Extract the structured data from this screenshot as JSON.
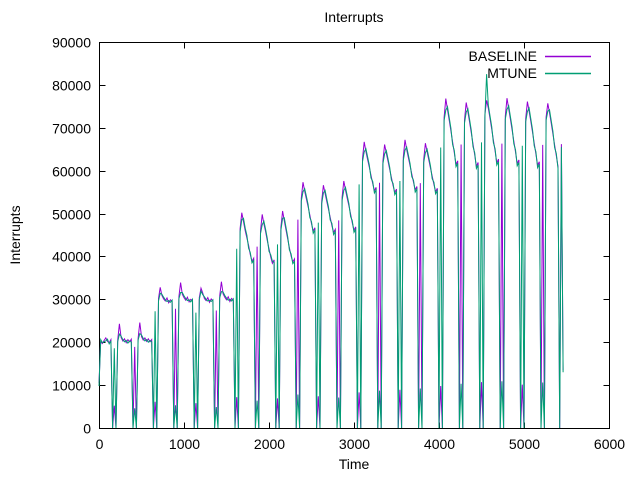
{
  "title": "Interrupts",
  "chart_data": {
    "type": "line",
    "title": "Interrupts",
    "xlabel": "Time",
    "ylabel": "Interrupts",
    "xlim": [
      0,
      6000
    ],
    "ylim": [
      0,
      90000
    ],
    "x_ticks": [
      0,
      1000,
      2000,
      3000,
      4000,
      5000,
      6000
    ],
    "y_ticks": [
      0,
      10000,
      20000,
      30000,
      40000,
      50000,
      60000,
      70000,
      80000,
      90000
    ],
    "grid": "off",
    "legend_position": "top-right-inside",
    "background": "#ffffff",
    "border_color": "#000000",
    "series": [
      {
        "name": "BASELINE",
        "color": "#9400d3"
      },
      {
        "name": "MTUNE",
        "color": "#009e73"
      }
    ],
    "columns": [
      "time",
      "BASELINE",
      "MTUNE"
    ],
    "points": [
      [
        0,
        10500,
        9800
      ],
      [
        20,
        20100,
        20600
      ],
      [
        40,
        19700,
        19900
      ],
      [
        60,
        20400,
        20100
      ],
      [
        80,
        21000,
        20300
      ],
      [
        100,
        20200,
        20700
      ],
      [
        120,
        19900,
        19600
      ],
      [
        140,
        20600,
        20200
      ],
      [
        160,
        0,
        0
      ],
      [
        180,
        5200,
        18600
      ],
      [
        200,
        0,
        0
      ],
      [
        220,
        20500,
        20100
      ],
      [
        240,
        24300,
        21900
      ],
      [
        260,
        21100,
        21400
      ],
      [
        280,
        20300,
        20600
      ],
      [
        300,
        20800,
        20100
      ],
      [
        320,
        19900,
        20400
      ],
      [
        340,
        20600,
        19800
      ],
      [
        360,
        20100,
        20300
      ],
      [
        380,
        20700,
        20000
      ],
      [
        400,
        0,
        0
      ],
      [
        420,
        18900,
        4600
      ],
      [
        440,
        0,
        0
      ],
      [
        460,
        20900,
        20500
      ],
      [
        480,
        24600,
        22000
      ],
      [
        500,
        21300,
        21700
      ],
      [
        520,
        20500,
        20900
      ],
      [
        540,
        21000,
        20300
      ],
      [
        560,
        20200,
        20600
      ],
      [
        580,
        20800,
        20000
      ],
      [
        600,
        20100,
        20400
      ],
      [
        620,
        20600,
        20100
      ],
      [
        640,
        0,
        0
      ],
      [
        660,
        6100,
        27200
      ],
      [
        680,
        0,
        0
      ],
      [
        700,
        30200,
        29600
      ],
      [
        720,
        32800,
        31400
      ],
      [
        740,
        30900,
        31200
      ],
      [
        760,
        30100,
        30500
      ],
      [
        780,
        29600,
        29900
      ],
      [
        800,
        30300,
        29500
      ],
      [
        820,
        29200,
        29700
      ],
      [
        840,
        29900,
        29300
      ],
      [
        860,
        29500,
        29800
      ],
      [
        880,
        0,
        0
      ],
      [
        900,
        27800,
        5300
      ],
      [
        920,
        0,
        0
      ],
      [
        940,
        30600,
        30100
      ],
      [
        960,
        33900,
        31600
      ],
      [
        980,
        31200,
        31600
      ],
      [
        1000,
        30400,
        30800
      ],
      [
        1020,
        29800,
        30200
      ],
      [
        1040,
        30500,
        29700
      ],
      [
        1060,
        29400,
        29900
      ],
      [
        1080,
        30000,
        29400
      ],
      [
        1100,
        29700,
        30000
      ],
      [
        1120,
        0,
        0
      ],
      [
        1140,
        5800,
        26900
      ],
      [
        1160,
        0,
        0
      ],
      [
        1180,
        30400,
        29900
      ],
      [
        1200,
        32600,
        31900
      ],
      [
        1220,
        31500,
        31100
      ],
      [
        1240,
        30200,
        30600
      ],
      [
        1260,
        29700,
        30000
      ],
      [
        1280,
        30400,
        29600
      ],
      [
        1300,
        29300,
        29800
      ],
      [
        1320,
        30100,
        29500
      ],
      [
        1340,
        29600,
        29900
      ],
      [
        1360,
        0,
        0
      ],
      [
        1380,
        27400,
        4900
      ],
      [
        1400,
        0,
        0
      ],
      [
        1420,
        30800,
        30300
      ],
      [
        1440,
        34100,
        31800
      ],
      [
        1460,
        31300,
        31700
      ],
      [
        1480,
        30500,
        30900
      ],
      [
        1500,
        29900,
        30300
      ],
      [
        1520,
        30600,
        29800
      ],
      [
        1540,
        29500,
        30000
      ],
      [
        1560,
        30200,
        29600
      ],
      [
        1580,
        29800,
        30100
      ],
      [
        1600,
        0,
        0
      ],
      [
        1620,
        7200,
        41800
      ],
      [
        1640,
        0,
        0
      ],
      [
        1660,
        46500,
        45800
      ],
      [
        1680,
        50200,
        48600
      ],
      [
        1700,
        48100,
        48900
      ],
      [
        1720,
        46000,
        46600
      ],
      [
        1740,
        44300,
        44900
      ],
      [
        1760,
        42600,
        41900
      ],
      [
        1780,
        40400,
        40900
      ],
      [
        1800,
        38900,
        38500
      ],
      [
        1820,
        39600,
        39100
      ],
      [
        1840,
        0,
        0
      ],
      [
        1860,
        42300,
        6400
      ],
      [
        1880,
        0,
        0
      ],
      [
        1900,
        45900,
        45300
      ],
      [
        1920,
        49800,
        47400
      ],
      [
        1940,
        47600,
        48200
      ],
      [
        1960,
        45800,
        46300
      ],
      [
        1980,
        43700,
        44200
      ],
      [
        2000,
        41800,
        41200
      ],
      [
        2020,
        39900,
        40400
      ],
      [
        2040,
        38400,
        38900
      ],
      [
        2060,
        39200,
        38600
      ],
      [
        2080,
        0,
        0
      ],
      [
        2100,
        6900,
        42800
      ],
      [
        2120,
        0,
        0
      ],
      [
        2140,
        46800,
        46100
      ],
      [
        2160,
        50600,
        48900
      ],
      [
        2180,
        48300,
        49000
      ],
      [
        2200,
        46200,
        46800
      ],
      [
        2220,
        44100,
        44600
      ],
      [
        2240,
        42000,
        41500
      ],
      [
        2260,
        40100,
        40600
      ],
      [
        2280,
        38700,
        38300
      ],
      [
        2300,
        39400,
        38800
      ],
      [
        2320,
        0,
        0
      ],
      [
        2340,
        48600,
        7800
      ],
      [
        2360,
        0,
        0
      ],
      [
        2380,
        53600,
        52900
      ],
      [
        2400,
        57300,
        55100
      ],
      [
        2420,
        55200,
        55800
      ],
      [
        2440,
        53400,
        54000
      ],
      [
        2460,
        51600,
        52100
      ],
      [
        2480,
        49700,
        49100
      ],
      [
        2500,
        47600,
        48100
      ],
      [
        2520,
        45900,
        45400
      ],
      [
        2540,
        46700,
        46100
      ],
      [
        2560,
        0,
        0
      ],
      [
        2580,
        7400,
        47900
      ],
      [
        2600,
        0,
        0
      ],
      [
        2620,
        52900,
        52300
      ],
      [
        2640,
        56600,
        54800
      ],
      [
        2660,
        54700,
        55400
      ],
      [
        2680,
        52800,
        53400
      ],
      [
        2700,
        51000,
        51500
      ],
      [
        2720,
        49100,
        48500
      ],
      [
        2740,
        47200,
        47700
      ],
      [
        2760,
        45600,
        45100
      ],
      [
        2780,
        46300,
        45800
      ],
      [
        2800,
        0,
        0
      ],
      [
        2820,
        48400,
        7100
      ],
      [
        2840,
        0,
        0
      ],
      [
        2860,
        53800,
        53100
      ],
      [
        2880,
        57600,
        55400
      ],
      [
        2900,
        55500,
        56100
      ],
      [
        2920,
        53600,
        54200
      ],
      [
        2940,
        51800,
        52300
      ],
      [
        2960,
        49900,
        49300
      ],
      [
        2980,
        47800,
        48300
      ],
      [
        3000,
        46100,
        45600
      ],
      [
        3020,
        46900,
        46300
      ],
      [
        3040,
        0,
        0
      ],
      [
        3060,
        8300,
        56800
      ],
      [
        3080,
        0,
        0
      ],
      [
        3100,
        62800,
        62100
      ],
      [
        3120,
        66700,
        64400
      ],
      [
        3140,
        64500,
        65100
      ],
      [
        3160,
        62600,
        63200
      ],
      [
        3180,
        60800,
        61300
      ],
      [
        3200,
        58900,
        58300
      ],
      [
        3220,
        57000,
        57500
      ],
      [
        3240,
        55300,
        54800
      ],
      [
        3260,
        56100,
        55500
      ],
      [
        3280,
        0,
        0
      ],
      [
        3300,
        57200,
        8700
      ],
      [
        3320,
        0,
        0
      ],
      [
        3340,
        62200,
        61600
      ],
      [
        3360,
        66100,
        63900
      ],
      [
        3380,
        64100,
        64700
      ],
      [
        3400,
        62200,
        62800
      ],
      [
        3420,
        60300,
        60800
      ],
      [
        3440,
        58400,
        57800
      ],
      [
        3460,
        56500,
        57000
      ],
      [
        3480,
        54900,
        54400
      ],
      [
        3500,
        55700,
        55100
      ],
      [
        3520,
        0,
        0
      ],
      [
        3540,
        8900,
        57600
      ],
      [
        3560,
        0,
        0
      ],
      [
        3580,
        63100,
        62400
      ],
      [
        3600,
        67200,
        64800
      ],
      [
        3620,
        64900,
        65500
      ],
      [
        3640,
        63000,
        63600
      ],
      [
        3660,
        61100,
        61600
      ],
      [
        3680,
        59200,
        58600
      ],
      [
        3700,
        57300,
        57800
      ],
      [
        3720,
        55500,
        55000
      ],
      [
        3740,
        56300,
        55700
      ],
      [
        3760,
        0,
        0
      ],
      [
        3780,
        57100,
        9200
      ],
      [
        3800,
        0,
        0
      ],
      [
        3820,
        62600,
        61900
      ],
      [
        3840,
        66400,
        64200
      ],
      [
        3860,
        64400,
        65000
      ],
      [
        3880,
        62500,
        63100
      ],
      [
        3900,
        60600,
        61100
      ],
      [
        3920,
        58700,
        58100
      ],
      [
        3940,
        56800,
        57300
      ],
      [
        3960,
        55100,
        54600
      ],
      [
        3980,
        55900,
        55300
      ],
      [
        4000,
        0,
        0
      ],
      [
        4020,
        9800,
        65400
      ],
      [
        4040,
        0,
        0
      ],
      [
        4060,
        72400,
        71700
      ],
      [
        4080,
        76800,
        74100
      ],
      [
        4100,
        74200,
        74900
      ],
      [
        4120,
        71800,
        72400
      ],
      [
        4140,
        69300,
        69900
      ],
      [
        4160,
        66700,
        66100
      ],
      [
        4180,
        64200,
        64700
      ],
      [
        4200,
        61400,
        60900
      ],
      [
        4220,
        62300,
        61700
      ],
      [
        4240,
        0,
        0
      ],
      [
        4260,
        66100,
        10300
      ],
      [
        4280,
        0,
        0
      ],
      [
        4300,
        71800,
        71100
      ],
      [
        4320,
        75900,
        73600
      ],
      [
        4340,
        73700,
        74400
      ],
      [
        4360,
        71300,
        71900
      ],
      [
        4380,
        68800,
        69400
      ],
      [
        4400,
        66200,
        65600
      ],
      [
        4420,
        63700,
        64200
      ],
      [
        4440,
        61000,
        60500
      ],
      [
        4460,
        61900,
        61300
      ],
      [
        4480,
        0,
        0
      ],
      [
        4500,
        10700,
        66600
      ],
      [
        4520,
        0,
        0
      ],
      [
        4540,
        73100,
        72400
      ],
      [
        4560,
        76400,
        82500
      ],
      [
        4580,
        74600,
        75300
      ],
      [
        4600,
        72200,
        72800
      ],
      [
        4620,
        69700,
        70300
      ],
      [
        4640,
        67100,
        66500
      ],
      [
        4660,
        64600,
        65100
      ],
      [
        4680,
        61800,
        61300
      ],
      [
        4700,
        62700,
        62100
      ],
      [
        4720,
        0,
        0
      ],
      [
        4740,
        66300,
        10900
      ],
      [
        4760,
        0,
        0
      ],
      [
        4780,
        72700,
        72000
      ],
      [
        4800,
        76900,
        74300
      ],
      [
        4820,
        74400,
        75100
      ],
      [
        4840,
        72000,
        72600
      ],
      [
        4860,
        69500,
        70100
      ],
      [
        4880,
        66900,
        66300
      ],
      [
        4900,
        64400,
        64900
      ],
      [
        4920,
        61600,
        61100
      ],
      [
        4940,
        62500,
        61900
      ],
      [
        4960,
        0,
        0
      ],
      [
        4980,
        10100,
        65800
      ],
      [
        5000,
        0,
        0
      ],
      [
        5020,
        72100,
        71400
      ],
      [
        5040,
        76100,
        73800
      ],
      [
        5060,
        73900,
        74600
      ],
      [
        5080,
        71500,
        72100
      ],
      [
        5100,
        69000,
        69600
      ],
      [
        5120,
        66400,
        65800
      ],
      [
        5140,
        63900,
        64400
      ],
      [
        5160,
        61200,
        60700
      ],
      [
        5180,
        62100,
        61500
      ],
      [
        5200,
        0,
        0
      ],
      [
        5220,
        66000,
        10600
      ],
      [
        5240,
        0,
        0
      ],
      [
        5260,
        72500,
        71800
      ],
      [
        5280,
        75700,
        73900
      ],
      [
        5300,
        73500,
        74200
      ],
      [
        5320,
        71100,
        71700
      ],
      [
        5340,
        68600,
        69200
      ],
      [
        5360,
        66000,
        65400
      ],
      [
        5380,
        63500,
        64000
      ],
      [
        5400,
        61000,
        60500
      ],
      [
        5420,
        0,
        0
      ],
      [
        5440,
        66200,
        65500
      ],
      [
        5460,
        13500,
        13000
      ]
    ]
  }
}
